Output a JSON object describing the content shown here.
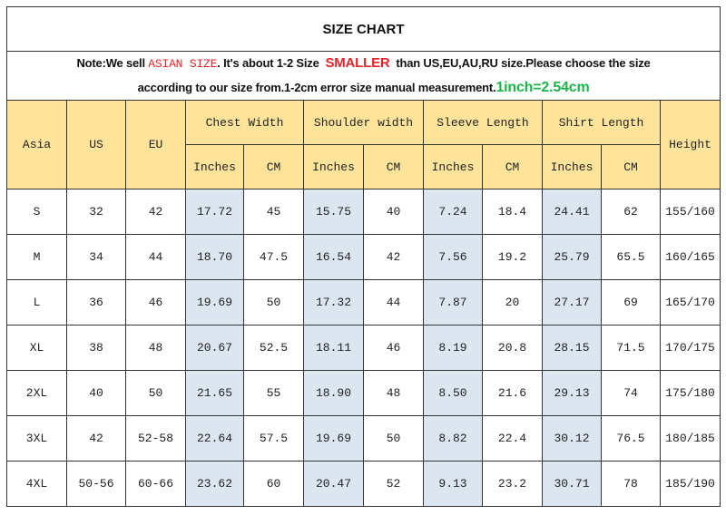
{
  "title": "SIZE CHART",
  "note": {
    "part1": "Note:We sell ",
    "asian_size": "ASIAN SIZE",
    "part2": ". It's about 1-2 Size ",
    "smaller": "SMALLER",
    "part3": " than US,EU,AU,RU size.Please choose the size",
    "part4": "according to our size from.1-2cm error size manual measurement.",
    "conversion": "1inch=2.54cm"
  },
  "headers": {
    "asia": "Asia",
    "us": "US",
    "eu": "EU",
    "groups": [
      "Chest Width",
      "Shoulder width",
      "Sleeve Length",
      "Shirt Length"
    ],
    "inches": "Inches",
    "cm": "CM",
    "height": "Height"
  },
  "rows": [
    [
      "S",
      "32",
      "42",
      "17.72",
      "45",
      "15.75",
      "40",
      "7.24",
      "18.4",
      "24.41",
      "62",
      "155/160"
    ],
    [
      "M",
      "34",
      "44",
      "18.70",
      "47.5",
      "16.54",
      "42",
      "7.56",
      "19.2",
      "25.79",
      "65.5",
      "160/165"
    ],
    [
      "L",
      "36",
      "46",
      "19.69",
      "50",
      "17.32",
      "44",
      "7.87",
      "20",
      "27.17",
      "69",
      "165/170"
    ],
    [
      "XL",
      "38",
      "48",
      "20.67",
      "52.5",
      "18.11",
      "46",
      "8.19",
      "20.8",
      "28.15",
      "71.5",
      "170/175"
    ],
    [
      "2XL",
      "40",
      "50",
      "21.65",
      "55",
      "18.90",
      "48",
      "8.50",
      "21.6",
      "29.13",
      "74",
      "175/180"
    ],
    [
      "3XL",
      "42",
      "52-58",
      "22.64",
      "57.5",
      "19.69",
      "50",
      "8.82",
      "22.4",
      "30.12",
      "76.5",
      "180/185"
    ],
    [
      "4XL",
      "50-56",
      "60-66",
      "23.62",
      "60",
      "20.47",
      "52",
      "9.13",
      "23.2",
      "30.71",
      "78",
      "185/190"
    ]
  ],
  "colors": {
    "header_bg": "#fde49a",
    "inches_bg": "#dce6f1",
    "accent_red": "#e8232a",
    "accent_green": "#1db54a"
  }
}
